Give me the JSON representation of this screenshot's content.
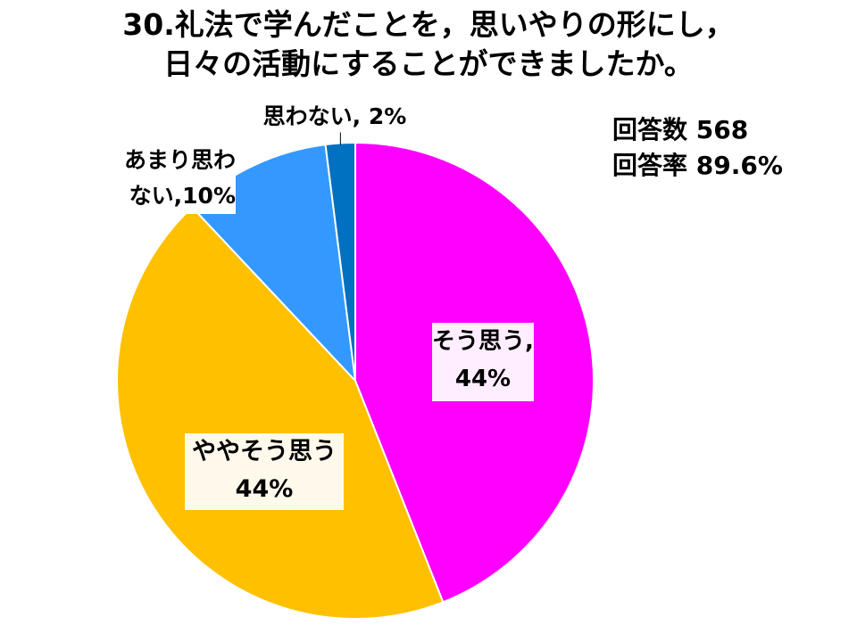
{
  "title": {
    "line1": "30.礼法で学んだことを，思いやりの形にし，",
    "line2": "日々の活動にすることができましたか。"
  },
  "stats": {
    "responses_label": "回答数",
    "responses_value": "568",
    "rate_label": "回答率",
    "rate_value": "89.6%"
  },
  "chart_data": {
    "type": "pie",
    "start_angle_deg": 0,
    "direction": "clockwise",
    "slices": [
      {
        "name": "そう思う",
        "value": 44,
        "label_line1": "そう思う,",
        "label_line2": "44%",
        "color": "#FF00FF"
      },
      {
        "name": "ややそう思う",
        "value": 44,
        "label_line1": "ややそう思う",
        "label_line2": "44%",
        "color": "#FFC000"
      },
      {
        "name": "あまり思わない",
        "value": 10,
        "label_line1": "あまり思わ",
        "label_line2": "ない,10%",
        "color": "#3399FF"
      },
      {
        "name": "思わない",
        "value": 2,
        "label_line1": "思わない, 2%",
        "label_line2": "",
        "color": "#0070C0"
      }
    ]
  }
}
